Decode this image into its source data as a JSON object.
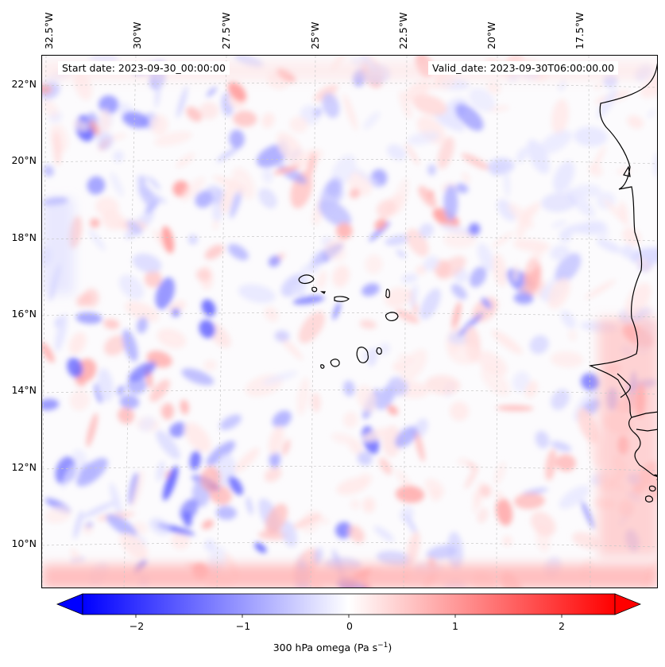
{
  "annotations": {
    "start_date": "Start date: 2023-09-30_00:00:00",
    "valid_date": "Valid_date: 2023-09-30T06:00:00.00"
  },
  "lon_labels": [
    "32.5°W",
    "30°W",
    "27.5°W",
    "25°W",
    "22.5°W",
    "20°W",
    "17.5°W"
  ],
  "lat_labels": [
    "22°N",
    "20°N",
    "18°N",
    "16°N",
    "14°N",
    "12°N",
    "10°N"
  ],
  "colorbar": {
    "ticks": [
      "−2",
      "−1",
      "0",
      "1",
      "2"
    ],
    "tick_values": [
      -2,
      -1,
      0,
      1,
      2
    ],
    "range": [
      -2.5,
      2.5
    ],
    "title_main": "300 hPa omega (Pa s",
    "title_sup": "−1",
    "title_end": ")",
    "low_color": "#0000ff",
    "mid_color": "#ffffff",
    "high_color": "#ff0000"
  },
  "map": {
    "field": "300 hPa omega",
    "coastline_color": "#000000",
    "gridline_color": "#c8c8c8"
  }
}
